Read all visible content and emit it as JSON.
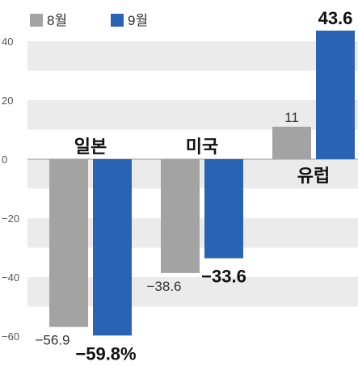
{
  "chart_data": {
    "type": "bar",
    "title": "",
    "xlabel": "",
    "ylabel": "",
    "ylim": [
      -60,
      40
    ],
    "yticks": [
      40,
      20,
      0,
      -20,
      -40,
      -60
    ],
    "grid": "horizontal bands",
    "legend_position": "top-left",
    "categories": [
      "일본",
      "미국",
      "유럽"
    ],
    "series": [
      {
        "name": "8월",
        "color": "#a3a3a3",
        "values": [
          -56.9,
          -38.6,
          11
        ],
        "labels": [
          "−56.9",
          "−38.6",
          "11"
        ]
      },
      {
        "name": "9월",
        "color": "#2a62b4",
        "values": [
          -59.8,
          -33.6,
          43.6
        ],
        "labels": [
          "−59.8%",
          "−33.6",
          "43.6"
        ]
      }
    ]
  }
}
